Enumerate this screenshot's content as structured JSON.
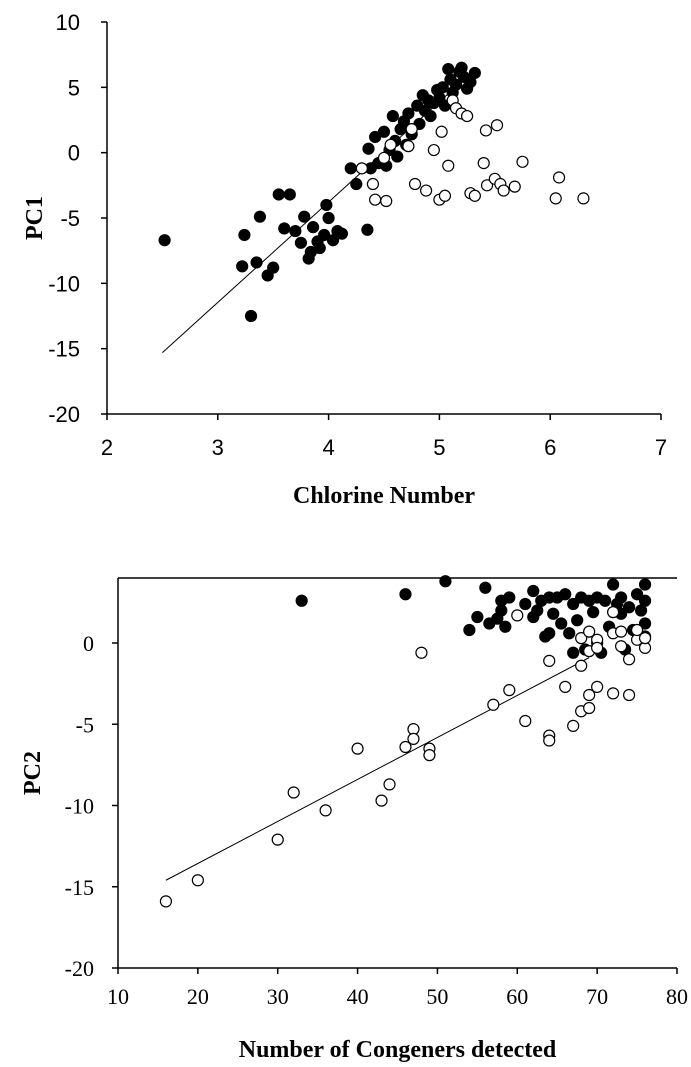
{
  "chart_data": [
    {
      "type": "scatter",
      "xlabel": "Chlorine Number",
      "ylabel": "PC1",
      "xlim": [
        2,
        7
      ],
      "ylim": [
        -20,
        10
      ],
      "xticks": [
        "2",
        "3",
        "4",
        "5",
        "6",
        "7"
      ],
      "yticks": [
        "10",
        "5",
        "0",
        "-5",
        "-10",
        "-15",
        "-20"
      ],
      "grid": false,
      "series": [
        {
          "marker": "filled circle",
          "color": "#000000",
          "points": [
            [
              2.52,
              -6.7
            ],
            [
              3.22,
              -8.7
            ],
            [
              3.24,
              -6.3
            ],
            [
              3.3,
              -12.5
            ],
            [
              3.35,
              -8.4
            ],
            [
              3.38,
              -4.9
            ],
            [
              3.45,
              -9.4
            ],
            [
              3.5,
              -8.8
            ],
            [
              3.55,
              -3.2
            ],
            [
              3.6,
              -5.8
            ],
            [
              3.65,
              -3.2
            ],
            [
              3.7,
              -6.0
            ],
            [
              3.75,
              -6.9
            ],
            [
              3.78,
              -4.9
            ],
            [
              3.82,
              -8.1
            ],
            [
              3.84,
              -7.6
            ],
            [
              3.86,
              -5.7
            ],
            [
              3.9,
              -6.8
            ],
            [
              3.92,
              -7.3
            ],
            [
              3.96,
              -6.3
            ],
            [
              3.98,
              -4.0
            ],
            [
              4.0,
              -5.0
            ],
            [
              4.04,
              -6.7
            ],
            [
              4.08,
              -6.0
            ],
            [
              4.12,
              -6.2
            ],
            [
              4.2,
              -1.2
            ],
            [
              4.25,
              -2.4
            ],
            [
              4.35,
              -5.9
            ],
            [
              4.36,
              0.3
            ],
            [
              4.38,
              -1.2
            ],
            [
              4.42,
              1.2
            ],
            [
              4.45,
              -0.8
            ],
            [
              4.5,
              1.6
            ],
            [
              4.52,
              -1.0
            ],
            [
              4.55,
              0.2
            ],
            [
              4.58,
              2.8
            ],
            [
              4.6,
              0.9
            ],
            [
              4.62,
              -0.3
            ],
            [
              4.65,
              1.8
            ],
            [
              4.68,
              2.4
            ],
            [
              4.7,
              0.6
            ],
            [
              4.72,
              3.0
            ],
            [
              4.75,
              1.4
            ],
            [
              4.8,
              3.6
            ],
            [
              4.82,
              2.2
            ],
            [
              4.85,
              4.4
            ],
            [
              4.87,
              3.2
            ],
            [
              4.9,
              4.0
            ],
            [
              4.92,
              2.8
            ],
            [
              4.95,
              3.8
            ],
            [
              4.98,
              4.8
            ],
            [
              5.0,
              4.2
            ],
            [
              5.03,
              5.0
            ],
            [
              5.05,
              3.6
            ],
            [
              5.08,
              6.4
            ],
            [
              5.1,
              5.6
            ],
            [
              5.12,
              4.6
            ],
            [
              5.15,
              5.2
            ],
            [
              5.18,
              6.2
            ],
            [
              5.2,
              6.5
            ],
            [
              5.22,
              5.8
            ],
            [
              5.25,
              4.9
            ],
            [
              5.28,
              5.4
            ],
            [
              5.32,
              6.1
            ]
          ]
        },
        {
          "marker": "open circle",
          "color": "#000000",
          "points": [
            [
              4.3,
              -1.2
            ],
            [
              4.4,
              -2.4
            ],
            [
              4.42,
              -3.6
            ],
            [
              4.5,
              -0.4
            ],
            [
              4.52,
              -3.7
            ],
            [
              4.56,
              0.6
            ],
            [
              4.72,
              0.5
            ],
            [
              4.75,
              1.8
            ],
            [
              4.78,
              -2.4
            ],
            [
              4.88,
              -2.9
            ],
            [
              4.95,
              0.2
            ],
            [
              5.0,
              -3.6
            ],
            [
              5.02,
              1.6
            ],
            [
              5.05,
              -3.3
            ],
            [
              5.08,
              -1.0
            ],
            [
              5.12,
              4.0
            ],
            [
              5.15,
              3.4
            ],
            [
              5.2,
              3.0
            ],
            [
              5.25,
              2.8
            ],
            [
              5.28,
              -3.1
            ],
            [
              5.32,
              -3.3
            ],
            [
              5.4,
              -0.8
            ],
            [
              5.42,
              1.7
            ],
            [
              5.43,
              -2.5
            ],
            [
              5.5,
              -2.0
            ],
            [
              5.52,
              2.1
            ],
            [
              5.55,
              -2.4
            ],
            [
              5.58,
              -2.9
            ],
            [
              5.68,
              -2.6
            ],
            [
              5.75,
              -0.7
            ],
            [
              6.05,
              -3.5
            ],
            [
              6.08,
              -1.9
            ],
            [
              6.3,
              -3.5
            ]
          ]
        }
      ],
      "trendline": {
        "x": [
          2.5,
          5.3
        ],
        "y": [
          -15.3,
          6.2
        ]
      }
    },
    {
      "type": "scatter",
      "xlabel": "Number of Congeners detected",
      "ylabel": "PC2",
      "xlim": [
        10,
        80
      ],
      "ylim": [
        -20,
        4
      ],
      "xticks": [
        "10",
        "20",
        "30",
        "40",
        "50",
        "60",
        "70",
        "80"
      ],
      "yticks": [
        "0",
        "-5",
        "-10",
        "-15",
        "-20"
      ],
      "grid": false,
      "series": [
        {
          "marker": "filled circle",
          "color": "#000000",
          "points": [
            [
              33,
              2.6
            ],
            [
              46,
              3.0
            ],
            [
              51,
              3.8
            ],
            [
              54,
              0.8
            ],
            [
              56,
              3.4
            ],
            [
              56.5,
              1.2
            ],
            [
              57.5,
              1.5
            ],
            [
              58,
              2.0
            ],
            [
              58.5,
              1.0
            ],
            [
              59,
              2.8
            ],
            [
              62,
              3.2
            ],
            [
              62.5,
              2.0
            ],
            [
              63,
              2.6
            ],
            [
              63.5,
              0.4
            ],
            [
              64,
              2.8
            ],
            [
              64.5,
              1.8
            ],
            [
              65,
              2.8
            ],
            [
              65.5,
              1.2
            ],
            [
              66,
              3.0
            ],
            [
              66.5,
              0.6
            ],
            [
              67,
              2.4
            ],
            [
              67.5,
              1.4
            ],
            [
              68,
              2.8
            ],
            [
              68.5,
              -0.4
            ],
            [
              69,
              2.6
            ],
            [
              69.5,
              1.9
            ],
            [
              70,
              2.8
            ],
            [
              70.5,
              -0.6
            ],
            [
              71,
              2.6
            ],
            [
              71.5,
              1.0
            ],
            [
              72,
              3.6
            ],
            [
              72.5,
              2.4
            ],
            [
              73,
              1.8
            ],
            [
              73.5,
              -0.4
            ],
            [
              74,
              2.2
            ],
            [
              74.5,
              0.8
            ],
            [
              75,
              3.0
            ],
            [
              75.5,
              2.0
            ],
            [
              76,
              3.6
            ],
            [
              76,
              1.2
            ],
            [
              76,
              2.6
            ],
            [
              76,
              0.4
            ],
            [
              73,
              2.8
            ],
            [
              70,
              0.0
            ],
            [
              67,
              -0.6
            ],
            [
              64,
              0.6
            ],
            [
              62,
              1.6
            ],
            [
              61,
              2.4
            ],
            [
              58,
              2.6
            ],
            [
              55,
              1.6
            ]
          ]
        },
        {
          "marker": "open circle",
          "color": "#000000",
          "points": [
            [
              16,
              -15.9
            ],
            [
              20,
              -14.6
            ],
            [
              30,
              -12.1
            ],
            [
              32,
              -9.2
            ],
            [
              36,
              -10.3
            ],
            [
              40,
              -6.5
            ],
            [
              43,
              -9.7
            ],
            [
              44,
              -8.7
            ],
            [
              46,
              -6.4
            ],
            [
              47,
              -5.3
            ],
            [
              47,
              -5.9
            ],
            [
              48,
              -0.6
            ],
            [
              49,
              -6.5
            ],
            [
              49,
              -6.9
            ],
            [
              57,
              -3.8
            ],
            [
              59,
              -2.9
            ],
            [
              60,
              1.7
            ],
            [
              61,
              -4.8
            ],
            [
              64,
              -5.7
            ],
            [
              64,
              -6.0
            ],
            [
              64,
              -1.1
            ],
            [
              66,
              -2.7
            ],
            [
              67,
              -5.1
            ],
            [
              68,
              -4.2
            ],
            [
              68,
              -1.4
            ],
            [
              68,
              0.3
            ],
            [
              69,
              -4.0
            ],
            [
              69,
              -3.2
            ],
            [
              69,
              -0.5
            ],
            [
              69,
              0.7
            ],
            [
              70,
              -2.7
            ],
            [
              70,
              0.2
            ],
            [
              70,
              -0.3
            ],
            [
              72,
              -3.1
            ],
            [
              72,
              1.9
            ],
            [
              72,
              0.6
            ],
            [
              73,
              0.7
            ],
            [
              73,
              -0.2
            ],
            [
              74,
              -3.2
            ],
            [
              74,
              -1.0
            ],
            [
              75,
              0.2
            ],
            [
              75,
              0.8
            ],
            [
              76,
              -0.3
            ],
            [
              76,
              0.3
            ]
          ]
        }
      ],
      "trendline": {
        "x": [
          16,
          69
        ],
        "y": [
          -14.6,
          -0.9
        ]
      }
    }
  ]
}
